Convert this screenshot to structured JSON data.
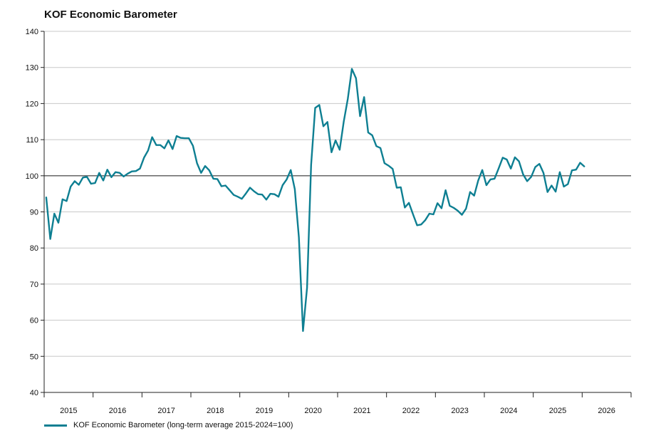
{
  "chart_data": {
    "type": "line",
    "title": "KOF Economic Barometer",
    "xlabel": "",
    "ylabel": "",
    "ylim": [
      40,
      140
    ],
    "yticks": [
      40,
      50,
      60,
      70,
      80,
      90,
      100,
      110,
      120,
      130,
      140
    ],
    "x_start": "2015-01",
    "x_end": "2026-12",
    "year_labels": [
      "2015",
      "2016",
      "2017",
      "2018",
      "2019",
      "2020",
      "2021",
      "2022",
      "2023",
      "2024",
      "2025",
      "2026"
    ],
    "reference_line": 100,
    "grid": true,
    "legend_position": "bottom-left",
    "series": [
      {
        "name": "KOF Economic Barometer (long-term average 2015-2024=100)",
        "color": "#0e7f92",
        "values": [
          94.0,
          82.5,
          89.5,
          87.0,
          93.5,
          93.0,
          97.0,
          98.5,
          97.5,
          99.5,
          99.7,
          97.8,
          98.0,
          100.8,
          98.7,
          101.7,
          99.6,
          101.0,
          100.8,
          99.8,
          100.6,
          101.2,
          101.3,
          102.0,
          105.0,
          107.0,
          110.7,
          108.5,
          108.5,
          107.6,
          109.8,
          107.4,
          111.0,
          110.5,
          110.4,
          110.4,
          108.3,
          103.5,
          100.8,
          102.7,
          101.5,
          99.2,
          99.1,
          97.1,
          97.3,
          96.0,
          94.7,
          94.2,
          93.6,
          95.1,
          96.7,
          95.7,
          94.9,
          94.8,
          93.4,
          95.0,
          94.9,
          94.2,
          97.4,
          99.0,
          101.6,
          96.3,
          83.0,
          57.0,
          69.0,
          103.0,
          118.8,
          119.6,
          113.7,
          114.9,
          106.5,
          109.8,
          107.2,
          115.0,
          121.3,
          129.6,
          127.0,
          116.5,
          121.8,
          112.0,
          111.2,
          108.2,
          107.7,
          103.5,
          102.8,
          101.9,
          96.7,
          96.8,
          91.2,
          92.5,
          89.3,
          86.3,
          86.5,
          87.7,
          89.5,
          89.3,
          92.4,
          91.0,
          96.0,
          91.7,
          91.1,
          90.3,
          89.2,
          90.9,
          95.5,
          94.5,
          98.7,
          101.6,
          97.4,
          99.0,
          99.2,
          102.0,
          105.0,
          104.5,
          102.0,
          105.1,
          104.0,
          100.4,
          98.5,
          99.7,
          102.4,
          103.3,
          100.8,
          95.5,
          97.3,
          95.6,
          101.0,
          97.0,
          97.7,
          101.5,
          101.7,
          103.6,
          102.6
        ]
      }
    ]
  }
}
